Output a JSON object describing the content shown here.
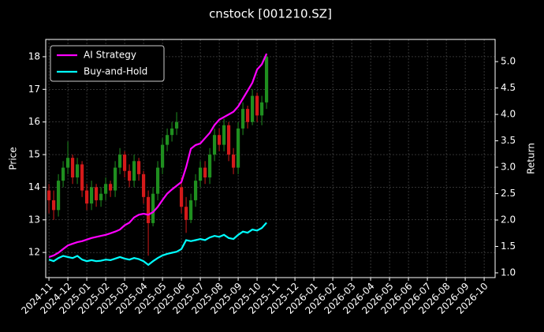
{
  "chart_data": {
    "type": "candlestick",
    "title": "cnstock [001210.SZ]",
    "y_label": "Price",
    "y2_label": "Return",
    "up_color": "#1f8f1f",
    "down_color": "#d41a1a",
    "grid": true,
    "legend": "upper-left",
    "x": [
      0,
      0.25,
      0.5,
      0.75,
      1,
      1.25,
      1.5,
      1.75,
      2,
      2.25,
      2.5,
      2.75,
      3,
      3.25,
      3.5,
      3.75,
      4,
      4.25,
      4.5,
      4.75,
      5,
      5.25,
      5.5,
      5.75,
      6,
      6.25,
      6.5,
      6.75,
      7,
      7.25,
      7.5,
      7.75,
      8,
      8.25,
      8.5,
      8.75,
      9,
      9.25,
      9.5,
      9.75,
      10,
      10.25,
      10.5,
      10.75,
      11,
      11.25,
      11.5
    ],
    "open": [
      13.9,
      13.6,
      13.3,
      14.2,
      14.6,
      14.9,
      14.3,
      14.7,
      13.9,
      13.5,
      14.0,
      13.6,
      13.8,
      14.1,
      13.9,
      14.6,
      15.0,
      14.5,
      14.2,
      14.8,
      14.4,
      13.7,
      12.9,
      13.8,
      14.6,
      15.3,
      15.6,
      15.8,
      14.0,
      13.4,
      13.0,
      13.6,
      14.2,
      14.6,
      14.3,
      15.0,
      15.6,
      15.3,
      15.9,
      15.0,
      14.6,
      15.8,
      16.4,
      16.0,
      16.8,
      16.2,
      16.6
    ],
    "high": [
      14.1,
      13.9,
      14.4,
      14.8,
      15.4,
      15.0,
      14.9,
      14.8,
      14.1,
      14.2,
      14.1,
      14.0,
      14.3,
      14.2,
      14.8,
      15.2,
      15.1,
      14.7,
      15.0,
      14.9,
      14.5,
      13.9,
      14.0,
      14.8,
      15.5,
      15.8,
      16.0,
      16.3,
      14.3,
      13.7,
      13.8,
      14.4,
      14.8,
      14.8,
      15.2,
      15.8,
      15.8,
      16.1,
      16.0,
      15.2,
      16.0,
      16.6,
      16.5,
      17.0,
      16.9,
      16.8,
      18.1
    ],
    "low": [
      13.2,
      13.0,
      13.1,
      14.0,
      14.4,
      14.1,
      14.1,
      13.7,
      13.3,
      13.3,
      13.4,
      13.4,
      13.6,
      13.7,
      13.7,
      14.4,
      14.3,
      14.0,
      14.0,
      14.2,
      13.5,
      11.9,
      12.8,
      13.6,
      14.4,
      15.1,
      15.4,
      15.6,
      13.2,
      12.6,
      12.9,
      13.4,
      14.0,
      14.1,
      14.1,
      14.8,
      15.1,
      15.1,
      14.8,
      14.4,
      14.4,
      15.6,
      15.8,
      15.9,
      16.0,
      15.9,
      16.4
    ],
    "close": [
      13.6,
      13.3,
      14.2,
      14.6,
      14.9,
      14.3,
      14.7,
      13.9,
      13.5,
      14.0,
      13.6,
      13.8,
      14.1,
      13.9,
      14.6,
      15.0,
      14.5,
      14.2,
      14.8,
      14.4,
      13.7,
      12.9,
      13.8,
      14.6,
      15.3,
      15.6,
      15.8,
      16.0,
      13.4,
      13.0,
      13.6,
      14.2,
      14.6,
      14.3,
      15.0,
      15.6,
      15.3,
      15.9,
      15.0,
      14.6,
      15.8,
      16.4,
      16.0,
      16.8,
      16.2,
      16.6,
      18.0
    ],
    "series": [
      {
        "name": "AI Strategy",
        "color": "#ff00ff",
        "axis": "y2",
        "values": [
          1.3,
          1.33,
          1.38,
          1.45,
          1.52,
          1.55,
          1.58,
          1.6,
          1.63,
          1.66,
          1.68,
          1.7,
          1.72,
          1.75,
          1.78,
          1.82,
          1.9,
          1.95,
          2.05,
          2.1,
          2.12,
          2.1,
          2.15,
          2.25,
          2.38,
          2.5,
          2.58,
          2.65,
          2.72,
          3.0,
          3.35,
          3.42,
          3.45,
          3.55,
          3.65,
          3.8,
          3.9,
          3.95,
          4.0,
          4.05,
          4.15,
          4.3,
          4.45,
          4.6,
          4.85,
          4.95,
          5.15
        ]
      },
      {
        "name": "Buy-and-Hold",
        "color": "#00ffff",
        "axis": "y2",
        "values": [
          1.25,
          1.22,
          1.28,
          1.32,
          1.3,
          1.28,
          1.32,
          1.25,
          1.22,
          1.24,
          1.22,
          1.23,
          1.25,
          1.24,
          1.27,
          1.3,
          1.27,
          1.25,
          1.28,
          1.26,
          1.22,
          1.15,
          1.22,
          1.28,
          1.33,
          1.36,
          1.38,
          1.4,
          1.45,
          1.62,
          1.6,
          1.62,
          1.64,
          1.62,
          1.67,
          1.7,
          1.68,
          1.72,
          1.66,
          1.64,
          1.72,
          1.78,
          1.76,
          1.82,
          1.8,
          1.85,
          1.95
        ]
      }
    ],
    "xlim": [
      -0.17,
      23.58
    ],
    "xticks": [
      {
        "value": 0,
        "label": "2024-11"
      },
      {
        "value": 1,
        "label": "2024-12"
      },
      {
        "value": 2,
        "label": "2025-01"
      },
      {
        "value": 3,
        "label": "2025-02"
      },
      {
        "value": 4,
        "label": "2025-03"
      },
      {
        "value": 5,
        "label": "2025-04"
      },
      {
        "value": 6,
        "label": "2025-05"
      },
      {
        "value": 7,
        "label": "2025-06"
      },
      {
        "value": 8,
        "label": "2025-07"
      },
      {
        "value": 9,
        "label": "2025-08"
      },
      {
        "value": 10,
        "label": "2025-09"
      },
      {
        "value": 11,
        "label": "2025-10"
      },
      {
        "value": 12,
        "label": "2025-11"
      },
      {
        "value": 13,
        "label": "2025-12"
      },
      {
        "value": 14,
        "label": "2026-01"
      },
      {
        "value": 15,
        "label": "2026-02"
      },
      {
        "value": 16,
        "label": "2026-03"
      },
      {
        "value": 17,
        "label": "2026-04"
      },
      {
        "value": 18,
        "label": "2026-05"
      },
      {
        "value": 19,
        "label": "2026-06"
      },
      {
        "value": 20,
        "label": "2026-07"
      },
      {
        "value": 21,
        "label": "2026-08"
      },
      {
        "value": 22,
        "label": "2026-09"
      },
      {
        "value": 23,
        "label": "2026-10"
      }
    ],
    "ylim": [
      11.23,
      18.53
    ],
    "yticks": [
      12,
      13,
      14,
      15,
      16,
      17,
      18
    ],
    "y2lim": [
      0.91,
      5.42
    ],
    "y2ticks": [
      {
        "value": 1,
        "label": "1.0"
      },
      1.5,
      {
        "value": 2,
        "label": "2.0"
      },
      2.5,
      {
        "value": 3,
        "label": "3.0"
      },
      3.5,
      {
        "value": 4,
        "label": "4.0"
      },
      4.5,
      {
        "value": 5,
        "label": "5.0"
      }
    ]
  }
}
